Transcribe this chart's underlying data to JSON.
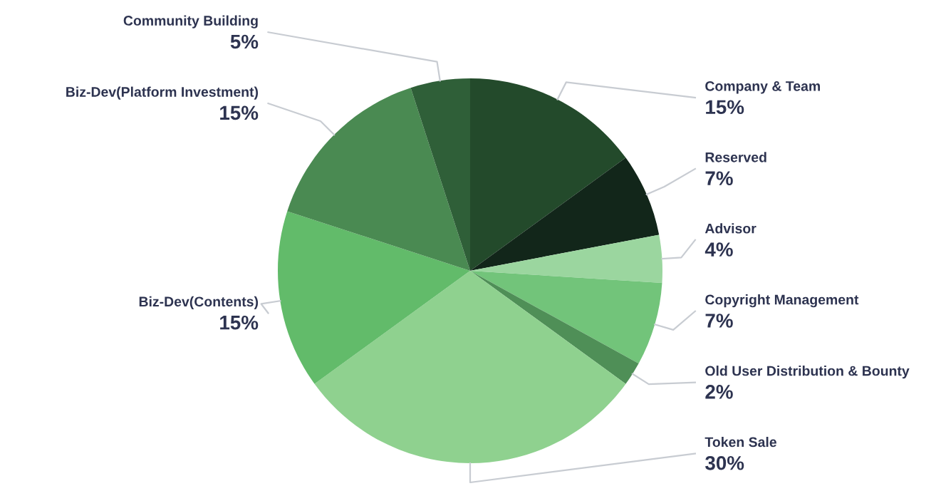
{
  "chart_data": {
    "type": "pie",
    "categories": [
      "Company & Team",
      "Reserved",
      "Advisor",
      "Copyright Management",
      "Old User Distribution & Bounty",
      "Token Sale",
      "Biz-Dev(Contents)",
      "Biz-Dev(Platform Investment)",
      "Community Building"
    ],
    "values": [
      15,
      7,
      4,
      7,
      2,
      30,
      15,
      15,
      5
    ],
    "value_labels": [
      "15%",
      "7%",
      "4%",
      "7%",
      "2%",
      "30%",
      "15%",
      "15%",
      "5%"
    ],
    "colors": [
      "#234a2b",
      "#12261a",
      "#9bd69f",
      "#72c47a",
      "#4f8f57",
      "#8fd18f",
      "#62bb6a",
      "#4a8a52",
      "#2f5f38"
    ]
  }
}
